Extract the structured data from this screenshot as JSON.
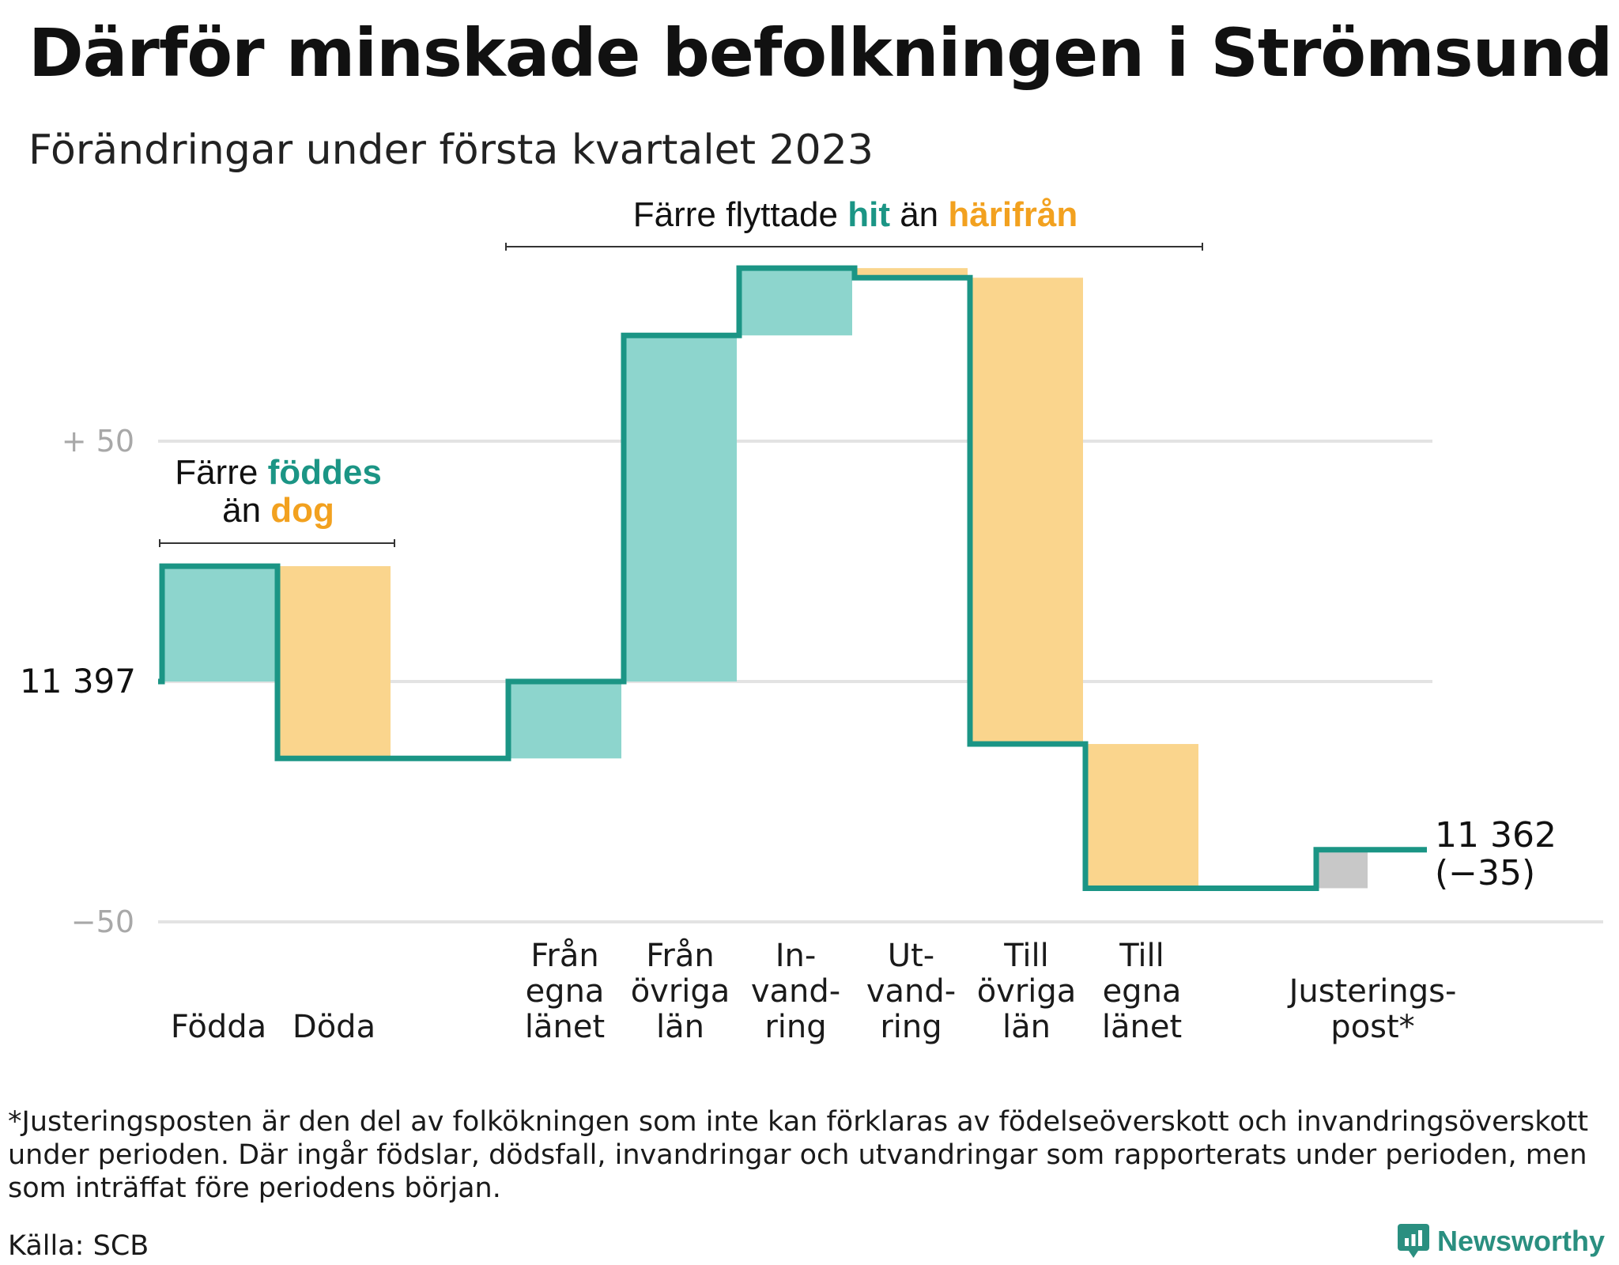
{
  "title": "Därför minskade befolkningen i Strömsund",
  "subtitle": "Förändringar under första kvartalet 2023",
  "chart_data": {
    "type": "waterfall",
    "start_value": 11397,
    "end_value": 11362,
    "end_label": "11 362",
    "end_change_label": "(−35)",
    "baseline_label": "11 397",
    "ylim": [
      -50,
      110
    ],
    "yticks": [
      {
        "value": 50,
        "label": "+ 50"
      },
      {
        "value": 0,
        "label": ""
      },
      {
        "value": -50,
        "label": "−50"
      }
    ],
    "categories": [
      {
        "label": [
          "Födda"
        ],
        "change": 24,
        "kind": "in"
      },
      {
        "label": [
          "Döda"
        ],
        "change": -40,
        "kind": "out"
      },
      {
        "label": [],
        "change": 0,
        "kind": "none"
      },
      {
        "label": [
          "Från",
          "egna",
          "länet"
        ],
        "change": 16,
        "kind": "in"
      },
      {
        "label": [
          "Från",
          "övriga",
          "län"
        ],
        "change": 72,
        "kind": "in"
      },
      {
        "label": [
          "In-",
          "vand-",
          "ring"
        ],
        "change": 14,
        "kind": "in"
      },
      {
        "label": [
          "Ut-",
          "vand-",
          "ring"
        ],
        "change": -2,
        "kind": "out"
      },
      {
        "label": [
          "Till",
          "övriga",
          "län"
        ],
        "change": -97,
        "kind": "out"
      },
      {
        "label": [
          "Till",
          "egna",
          "länet"
        ],
        "change": -30,
        "kind": "out"
      },
      {
        "label": [],
        "change": 0,
        "kind": "none"
      },
      {
        "label": [
          "Justerings-",
          "post*"
        ],
        "change": 8,
        "kind": "adj"
      }
    ],
    "annotations": [
      {
        "parts": [
          {
            "text": "Färre ",
            "color": "#111111"
          },
          {
            "text": "föddes",
            "color": "#1b9585"
          }
        ],
        "parts2": [
          {
            "text": "än ",
            "color": "#111111"
          },
          {
            "text": "dog",
            "color": "#f2a11f"
          }
        ],
        "from": 0,
        "to": 1
      },
      {
        "parts": [
          {
            "text": "Färre flyttade ",
            "color": "#111111"
          },
          {
            "text": "hit",
            "color": "#1b9585"
          },
          {
            "text": " än ",
            "color": "#111111"
          },
          {
            "text": "härifrån",
            "color": "#f2a11f"
          }
        ],
        "from": 3,
        "to": 8
      }
    ],
    "colors": {
      "in": "#8dd5cd",
      "out": "#fad58d",
      "adj": "#c8c8c8",
      "line": "#1b9585",
      "grid": "#e3e3e3",
      "tick": "#a8a8a8"
    }
  },
  "footnote": "*Justeringsposten är den del av folkökningen som inte kan förklaras av födelseöverskott och invandringsöverskott under perioden. Där ingår födslar, dödsfall, invandringar och utvandringar som rapporterats under perioden, men som inträffat före periodens början.",
  "source": "Källa: SCB",
  "brand": {
    "name": "Newsworthy",
    "color": "#2a8f80",
    "icon": "newsworthy-logo-icon"
  }
}
